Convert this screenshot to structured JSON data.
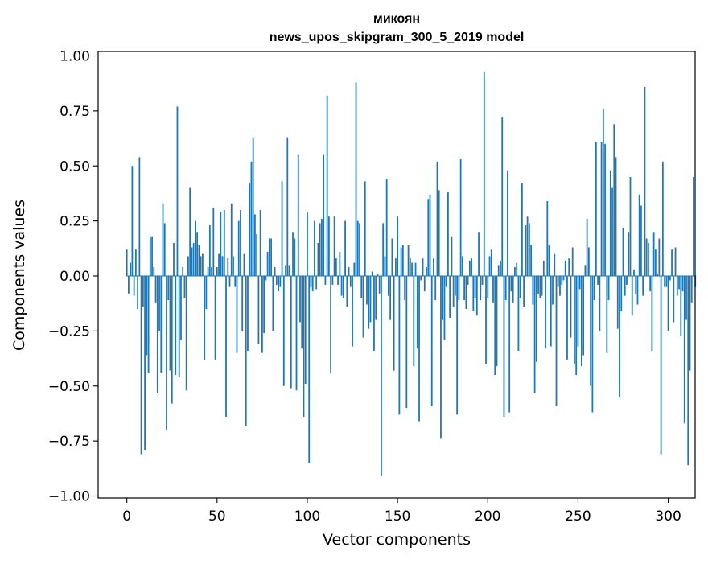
{
  "chart_data": {
    "type": "bar",
    "title": "микоян",
    "subtitle": "news_upos_skipgram_300_5_2019 model",
    "xlabel": "Vector components",
    "ylabel": "Components values",
    "xlim": [
      -15.9,
      314.9
    ],
    "ylim": [
      -1.0,
      1.0
    ],
    "xticks": [
      0,
      50,
      100,
      150,
      200,
      250,
      300
    ],
    "yticks": [
      -1.0,
      -0.75,
      -0.5,
      -0.25,
      0.0,
      0.25,
      0.5,
      0.75,
      1.0
    ],
    "xtick_labels": [
      "0",
      "50",
      "100",
      "150",
      "200",
      "250",
      "300"
    ],
    "ytick_labels": [
      "−1.00",
      "−0.75",
      "−0.50",
      "−0.25",
      "0.00",
      "0.25",
      "0.50",
      "0.75",
      "1.00"
    ],
    "bar_color": "#1f77b4",
    "grid": false,
    "values": [
      0.12,
      -0.08,
      0.06,
      0.5,
      -0.09,
      0.12,
      -0.15,
      0.54,
      -0.81,
      -0.14,
      -0.79,
      -0.36,
      -0.44,
      0.18,
      0.18,
      0.04,
      -0.12,
      -0.53,
      -0.25,
      -0.44,
      0.33,
      0.24,
      -0.7,
      -0.11,
      -0.43,
      -0.58,
      0.15,
      -0.45,
      0.77,
      -0.46,
      -0.29,
      0.04,
      -0.1,
      -0.52,
      0.09,
      0.4,
      0.13,
      0.15,
      0.25,
      0.2,
      0.14,
      0.09,
      0.1,
      -0.38,
      -0.15,
      0.04,
      0.23,
      0.04,
      0.31,
      -0.38,
      0.04,
      0.1,
      0.29,
      0.09,
      0.3,
      -0.64,
      0.08,
      -0.05,
      0.33,
      0.09,
      -0.05,
      -0.35,
      0.25,
      0.3,
      -0.25,
      0.1,
      -0.68,
      -0.34,
      0.42,
      0.52,
      0.63,
      0.28,
      0.19,
      -0.31,
      0.3,
      -0.35,
      -0.26,
      -0.02,
      0.11,
      0.17,
      0.17,
      -0.25,
      0.04,
      -0.04,
      -0.07,
      -0.05,
      0.43,
      -0.5,
      0.05,
      0.63,
      0.05,
      -0.51,
      0.2,
      0.17,
      -0.52,
      0.55,
      -0.21,
      -0.33,
      -0.64,
      -0.49,
      0.29,
      -0.85,
      -0.05,
      -0.07,
      0.25,
      -0.06,
      0.15,
      0.24,
      0.26,
      0.55,
      -0.04,
      0.82,
      0.27,
      -0.44,
      -0.04,
      0.27,
      0.08,
      -0.04,
      0.11,
      -0.09,
      -0.1,
      0.25,
      -0.14,
      0.04,
      -0.05,
      -0.32,
      0.06,
      0.88,
      0.25,
      0.24,
      -0.1,
      -0.28,
      0.43,
      -0.13,
      -0.24,
      -0.21,
      0.02,
      -0.34,
      -0.2,
      0.01,
      -0.08,
      -0.91,
      0.24,
      0.09,
      0.44,
      -0.09,
      -0.2,
      0.17,
      -0.43,
      0.08,
      0.27,
      -0.63,
      0.13,
      0.14,
      -0.11,
      -0.6,
      0.14,
      0.08,
      0.06,
      -0.41,
      0.06,
      -0.33,
      -0.66,
      -0.02,
      0.08,
      -0.07,
      0.04,
      0.35,
      0.37,
      -0.59,
      0.08,
      -0.11,
      0.52,
      0.39,
      -0.74,
      -0.2,
      -0.29,
      -0.05,
      0.38,
      -0.19,
      0.18,
      -0.14,
      -0.09,
      -0.63,
      -0.11,
      0.53,
      0.09,
      -0.11,
      -0.15,
      -0.04,
      0.07,
      0.08,
      -0.16,
      -0.1,
      -0.18,
      0.2,
      -0.11,
      -0.04,
      0.93,
      -0.4,
      -0.1,
      0.09,
      0.12,
      -0.12,
      -0.45,
      -0.41,
      0.05,
      0.07,
      0.72,
      -0.64,
      -0.11,
      0.48,
      -0.62,
      -0.07,
      -0.12,
      0.04,
      0.06,
      -0.34,
      -0.1,
      0.42,
      -0.14,
      0.23,
      0.27,
      0.24,
      0.14,
      -0.13,
      -0.53,
      -0.39,
      -0.08,
      -0.1,
      -0.09,
      0.07,
      -0.33,
      0.34,
      0.14,
      -0.32,
      -0.13,
      0.1,
      -0.59,
      -0.05,
      -0.09,
      -0.04,
      -0.02,
      0.07,
      -0.38,
      0.08,
      -0.28,
      0.13,
      -0.4,
      -0.45,
      -0.32,
      -0.06,
      -0.41,
      -0.36,
      0.05,
      0.26,
      0.13,
      -0.5,
      -0.62,
      -0.11,
      0.61,
      -0.04,
      -0.25,
      0.61,
      0.76,
      0.6,
      -0.35,
      -0.11,
      0.48,
      0.4,
      0.69,
      0.54,
      -0.24,
      -0.55,
      -0.16,
      0.22,
      -0.09,
      -0.04,
      0.2,
      0.45,
      -0.18,
      0.03,
      -0.08,
      -0.13,
      0.37,
      0.32,
      -0.09,
      0.86,
      0.17,
      0.15,
      -0.07,
      -0.34,
      0.2,
      0.12,
      0.01,
      0.17,
      -0.81,
      0.52,
      -0.05,
      -0.05,
      -0.25,
      -0.02,
      0.12,
      -0.21,
      0.13,
      -0.09,
      -0.06,
      -0.27,
      -0.07,
      -0.67,
      -0.2,
      -0.86,
      -0.43,
      -0.12,
      0.45,
      -0.05
    ]
  }
}
